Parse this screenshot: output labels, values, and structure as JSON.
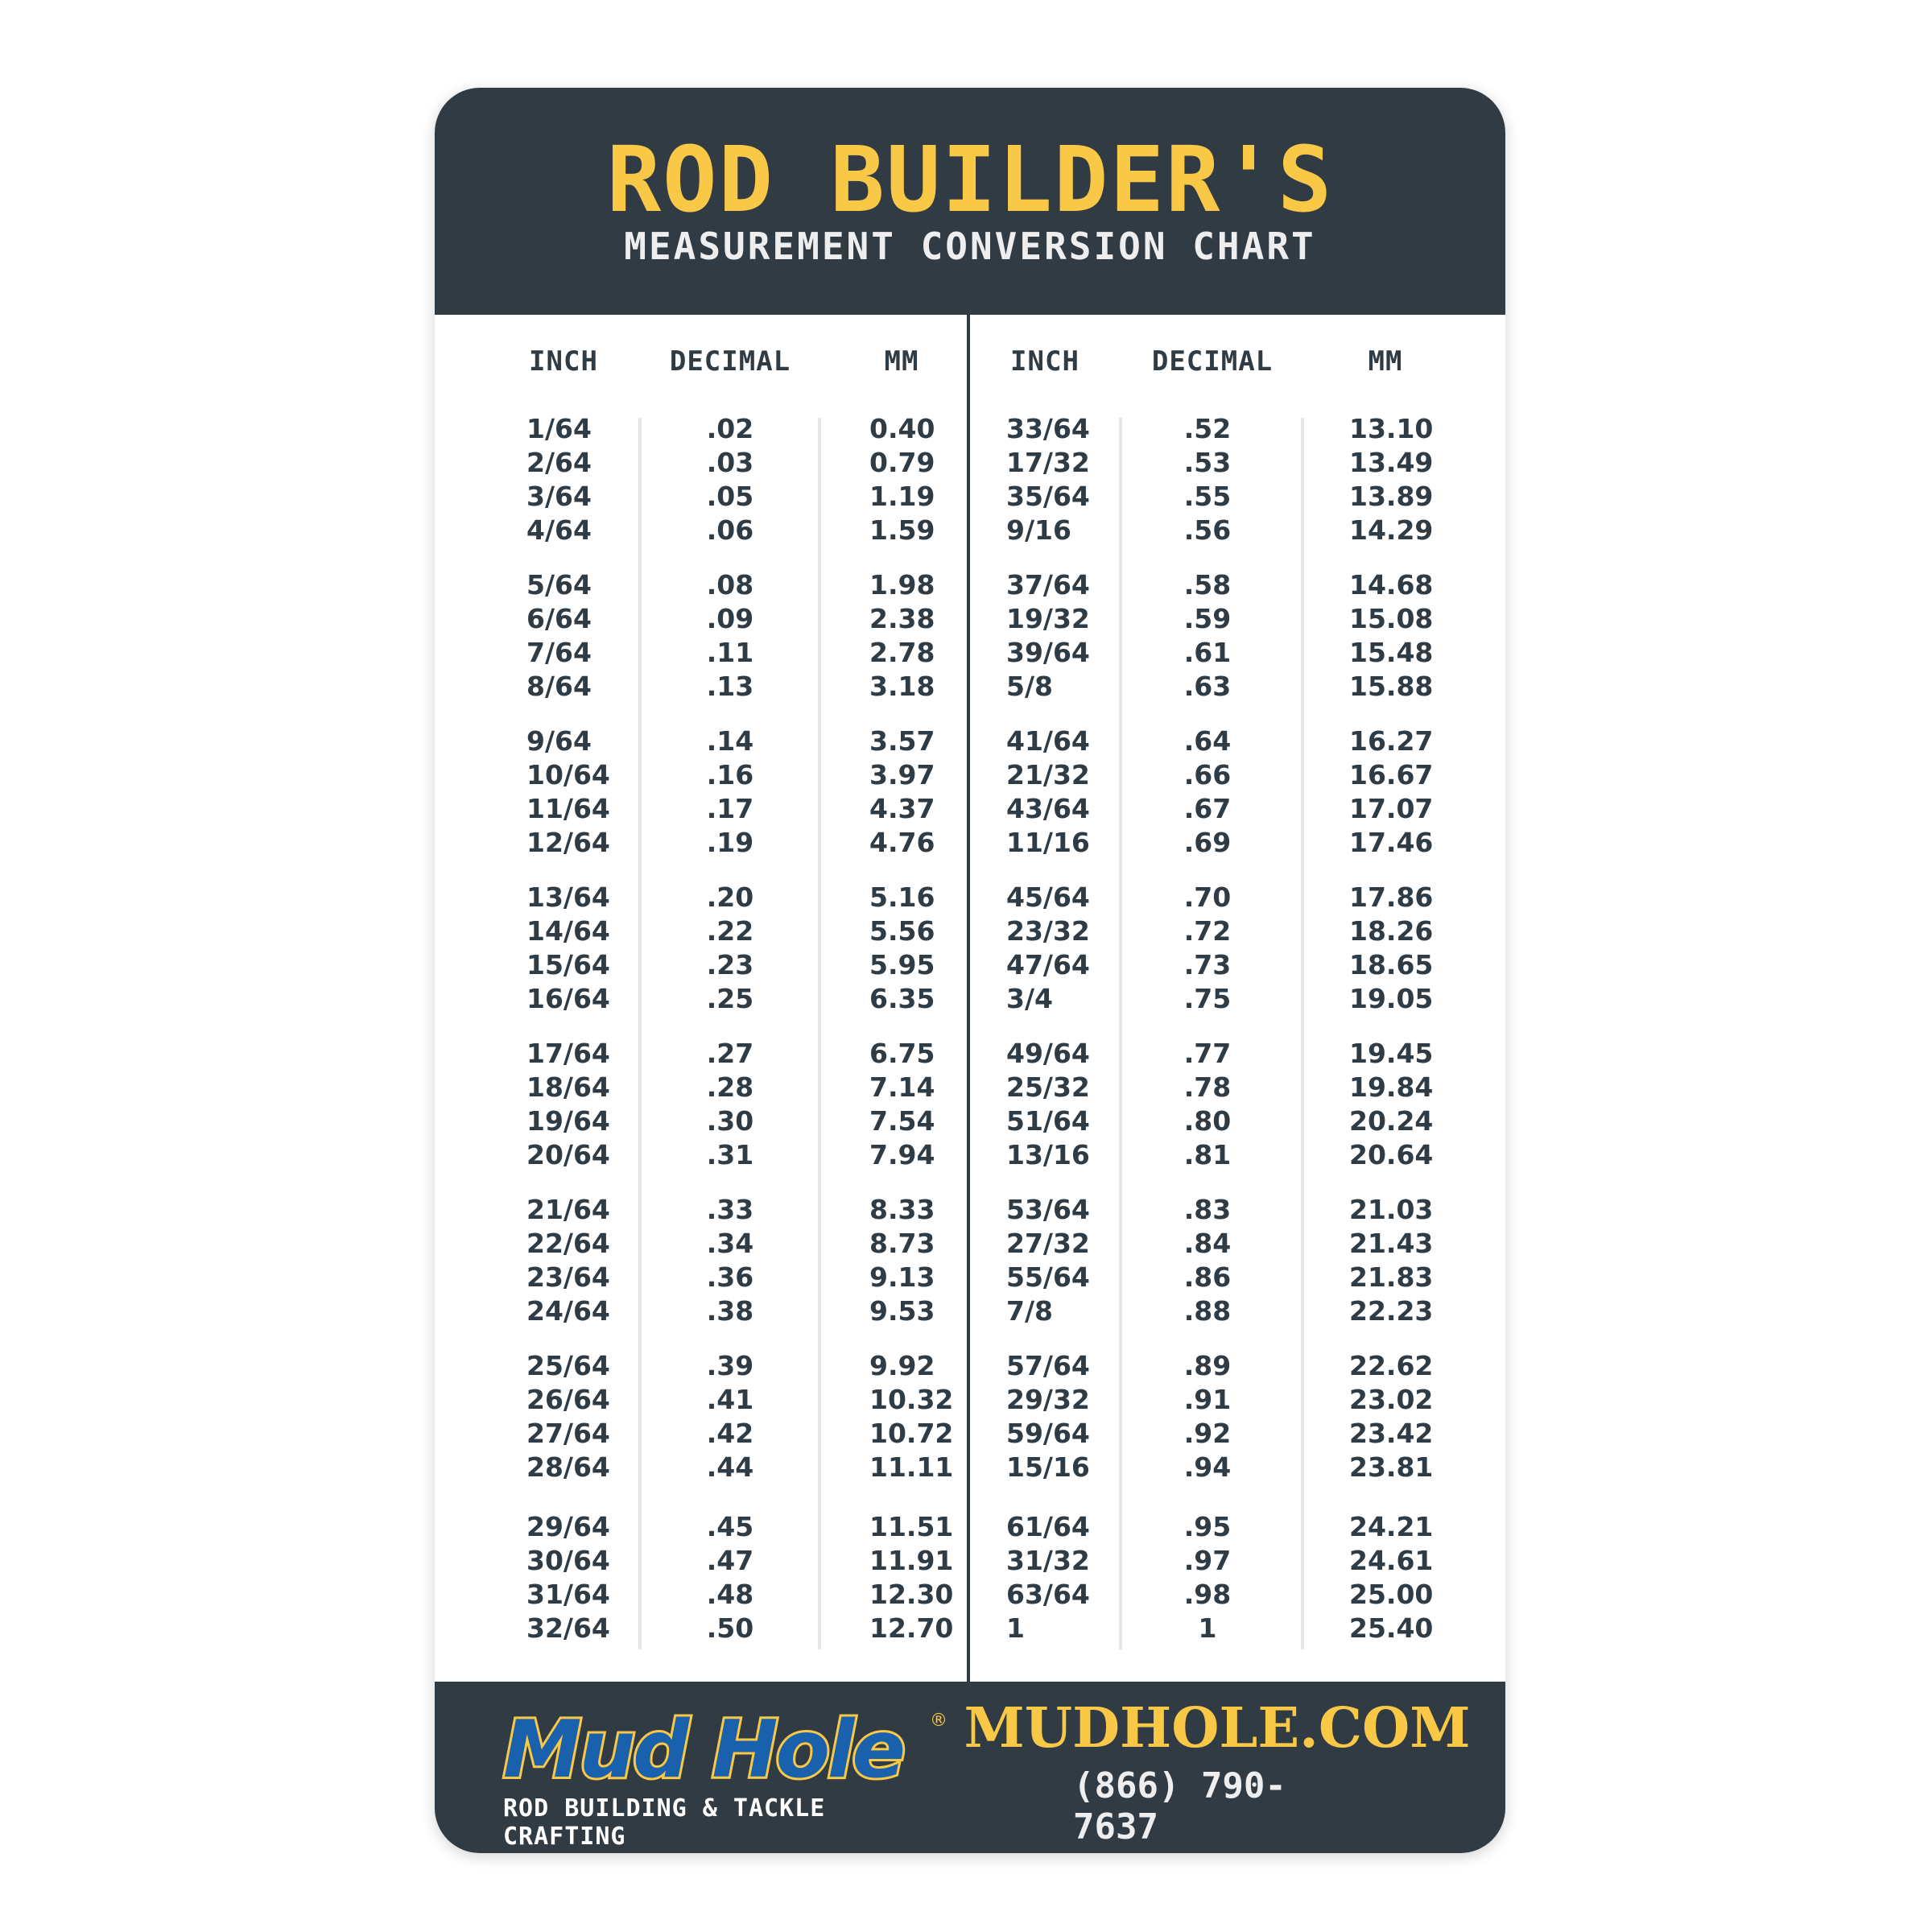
{
  "header": {
    "title": "ROD BUILDER'S",
    "subtitle": "MEASUREMENT CONVERSION CHART"
  },
  "columns": [
    "INCH",
    "DECIMAL",
    "MM"
  ],
  "colors": {
    "dark": "#313b44",
    "accent": "#f9c846",
    "logo_blue": "#1960ad"
  },
  "left_table": [
    [
      "1/64",
      ".02",
      "0.40"
    ],
    [
      "2/64",
      ".03",
      "0.79"
    ],
    [
      "3/64",
      ".05",
      "1.19"
    ],
    [
      "4/64",
      ".06",
      "1.59"
    ],
    [
      "5/64",
      ".08",
      "1.98"
    ],
    [
      "6/64",
      ".09",
      "2.38"
    ],
    [
      "7/64",
      ".11",
      "2.78"
    ],
    [
      "8/64",
      ".13",
      "3.18"
    ],
    [
      "9/64",
      ".14",
      "3.57"
    ],
    [
      "10/64",
      ".16",
      "3.97"
    ],
    [
      "11/64",
      ".17",
      "4.37"
    ],
    [
      "12/64",
      ".19",
      "4.76"
    ],
    [
      "13/64",
      ".20",
      "5.16"
    ],
    [
      "14/64",
      ".22",
      "5.56"
    ],
    [
      "15/64",
      ".23",
      "5.95"
    ],
    [
      "16/64",
      ".25",
      "6.35"
    ],
    [
      "17/64",
      ".27",
      "6.75"
    ],
    [
      "18/64",
      ".28",
      "7.14"
    ],
    [
      "19/64",
      ".30",
      "7.54"
    ],
    [
      "20/64",
      ".31",
      "7.94"
    ],
    [
      "21/64",
      ".33",
      "8.33"
    ],
    [
      "22/64",
      ".34",
      "8.73"
    ],
    [
      "23/64",
      ".36",
      "9.13"
    ],
    [
      "24/64",
      ".38",
      "9.53"
    ],
    [
      "25/64",
      ".39",
      "9.92"
    ],
    [
      "26/64",
      ".41",
      "10.32"
    ],
    [
      "27/64",
      ".42",
      "10.72"
    ],
    [
      "28/64",
      ".44",
      "11.11"
    ],
    [
      "29/64",
      ".45",
      "11.51"
    ],
    [
      "30/64",
      ".47",
      "11.91"
    ],
    [
      "31/64",
      ".48",
      "12.30"
    ],
    [
      "32/64",
      ".50",
      "12.70"
    ]
  ],
  "right_table": [
    [
      "33/64",
      ".52",
      "13.10"
    ],
    [
      "17/32",
      ".53",
      "13.49"
    ],
    [
      "35/64",
      ".55",
      "13.89"
    ],
    [
      "9/16",
      ".56",
      "14.29"
    ],
    [
      "37/64",
      ".58",
      "14.68"
    ],
    [
      "19/32",
      ".59",
      "15.08"
    ],
    [
      "39/64",
      ".61",
      "15.48"
    ],
    [
      "5/8",
      ".63",
      "15.88"
    ],
    [
      "41/64",
      ".64",
      "16.27"
    ],
    [
      "21/32",
      ".66",
      "16.67"
    ],
    [
      "43/64",
      ".67",
      "17.07"
    ],
    [
      "11/16",
      ".69",
      "17.46"
    ],
    [
      "45/64",
      ".70",
      "17.86"
    ],
    [
      "23/32",
      ".72",
      "18.26"
    ],
    [
      "47/64",
      ".73",
      "18.65"
    ],
    [
      "3/4",
      ".75",
      "19.05"
    ],
    [
      "49/64",
      ".77",
      "19.45"
    ],
    [
      "25/32",
      ".78",
      "19.84"
    ],
    [
      "51/64",
      ".80",
      "20.24"
    ],
    [
      "13/16",
      ".81",
      "20.64"
    ],
    [
      "53/64",
      ".83",
      "21.03"
    ],
    [
      "27/32",
      ".84",
      "21.43"
    ],
    [
      "55/64",
      ".86",
      "21.83"
    ],
    [
      "7/8",
      ".88",
      "22.23"
    ],
    [
      "57/64",
      ".89",
      "22.62"
    ],
    [
      "29/32",
      ".91",
      "23.02"
    ],
    [
      "59/64",
      ".92",
      "23.42"
    ],
    [
      "15/16",
      ".94",
      "23.81"
    ],
    [
      "61/64",
      ".95",
      "24.21"
    ],
    [
      "31/32",
      ".97",
      "24.61"
    ],
    [
      "63/64",
      ".98",
      "25.00"
    ],
    [
      "1",
      "1",
      "25.40"
    ]
  ],
  "footer": {
    "logo_text": "Mud Hole",
    "logo_registered": "®",
    "logo_tagline": "ROD BUILDING & TACKLE CRAFTING",
    "website": "MUDHOLE.COM",
    "phone": "(866) 790-7637"
  }
}
